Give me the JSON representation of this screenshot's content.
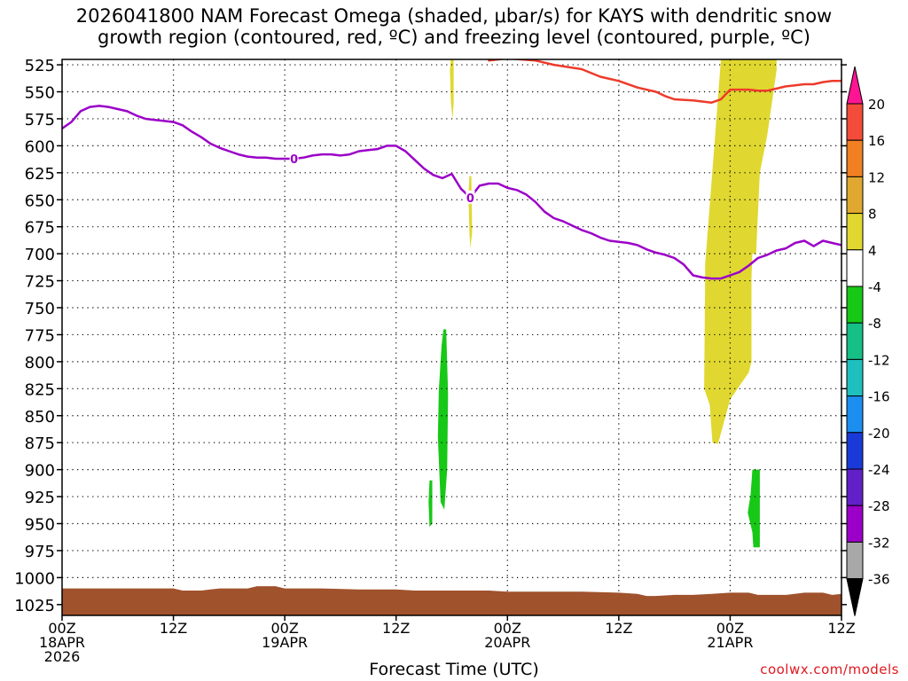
{
  "title_line1": "2026041800 NAM Forecast Omega (shaded, μbar/s) for KAYS with dendritic snow",
  "title_line2": "growth region (contoured, red, ºC) and freezing level (contoured, purple, ºC)",
  "xlabel": "Forecast Time (UTC)",
  "credit": "coolwx.com/models",
  "chart_data": {
    "type": "area",
    "y_axis": {
      "label": "",
      "unit": "hPa",
      "inverted": true,
      "range": [
        1035,
        520
      ],
      "ticks": [
        525,
        550,
        575,
        600,
        625,
        650,
        675,
        700,
        725,
        750,
        775,
        800,
        825,
        850,
        875,
        900,
        925,
        950,
        975,
        1000,
        1025
      ]
    },
    "x_axis": {
      "unit": "hours from 2026041800",
      "range": [
        0,
        84
      ],
      "ticks": [
        {
          "h": 0,
          "lines": [
            "00Z",
            "18APR",
            "2026"
          ]
        },
        {
          "h": 12,
          "lines": [
            "12Z"
          ]
        },
        {
          "h": 24,
          "lines": [
            "00Z",
            "19APR"
          ]
        },
        {
          "h": 36,
          "lines": [
            "12Z"
          ]
        },
        {
          "h": 48,
          "lines": [
            "00Z",
            "20APR"
          ]
        },
        {
          "h": 60,
          "lines": [
            "12Z"
          ]
        },
        {
          "h": 72,
          "lines": [
            "00Z",
            "21APR"
          ]
        },
        {
          "h": 84,
          "lines": [
            "12Z"
          ]
        }
      ]
    },
    "grid": true,
    "freezing_level": {
      "color": "#9b00c8",
      "label": "0",
      "label_points": [
        [
          25,
          612
        ],
        [
          44,
          648
        ]
      ],
      "points": [
        [
          0,
          584
        ],
        [
          1,
          578
        ],
        [
          2,
          568
        ],
        [
          3,
          564
        ],
        [
          4,
          563
        ],
        [
          5,
          564
        ],
        [
          6,
          566
        ],
        [
          7,
          568
        ],
        [
          8,
          572
        ],
        [
          9,
          575
        ],
        [
          10,
          576
        ],
        [
          11,
          577
        ],
        [
          12,
          578
        ],
        [
          13,
          581
        ],
        [
          14,
          587
        ],
        [
          15,
          592
        ],
        [
          16,
          598
        ],
        [
          17,
          602
        ],
        [
          18,
          605
        ],
        [
          19,
          608
        ],
        [
          20,
          610
        ],
        [
          21,
          611
        ],
        [
          22,
          611
        ],
        [
          23,
          612
        ],
        [
          24,
          612
        ],
        [
          25,
          612
        ],
        [
          26,
          611
        ],
        [
          27,
          609
        ],
        [
          28,
          608
        ],
        [
          29,
          608
        ],
        [
          30,
          609
        ],
        [
          31,
          608
        ],
        [
          32,
          605
        ],
        [
          33,
          604
        ],
        [
          34,
          603
        ],
        [
          35,
          600
        ],
        [
          36,
          600
        ],
        [
          37,
          605
        ],
        [
          38,
          613
        ],
        [
          39,
          621
        ],
        [
          40,
          627
        ],
        [
          41,
          630
        ],
        [
          42,
          626
        ],
        [
          43,
          640
        ],
        [
          44,
          648
        ],
        [
          45,
          637
        ],
        [
          46,
          635
        ],
        [
          47,
          635
        ],
        [
          48,
          639
        ],
        [
          49,
          641
        ],
        [
          50,
          645
        ],
        [
          51,
          652
        ],
        [
          52,
          661
        ],
        [
          53,
          667
        ],
        [
          54,
          670
        ],
        [
          55,
          674
        ],
        [
          56,
          678
        ],
        [
          57,
          681
        ],
        [
          58,
          685
        ],
        [
          59,
          688
        ],
        [
          60,
          689
        ],
        [
          61,
          690
        ],
        [
          62,
          692
        ],
        [
          63,
          696
        ],
        [
          64,
          699
        ],
        [
          65,
          701
        ],
        [
          66,
          704
        ],
        [
          67,
          710
        ],
        [
          68,
          720
        ],
        [
          69,
          722
        ],
        [
          70,
          723
        ],
        [
          71,
          723
        ],
        [
          72,
          720
        ],
        [
          73,
          717
        ],
        [
          74,
          711
        ],
        [
          75,
          704
        ],
        [
          76,
          701
        ],
        [
          77,
          697
        ],
        [
          78,
          695
        ],
        [
          79,
          690
        ],
        [
          80,
          688
        ],
        [
          81,
          693
        ],
        [
          82,
          688
        ],
        [
          83,
          690
        ],
        [
          84,
          692
        ]
      ]
    },
    "dgz_contour": {
      "color": "#ee3a2a",
      "points": [
        [
          46,
          521
        ],
        [
          48,
          519
        ],
        [
          51,
          521
        ],
        [
          53,
          525
        ],
        [
          56,
          529
        ],
        [
          58,
          536
        ],
        [
          60,
          540
        ],
        [
          62,
          546
        ],
        [
          64,
          550
        ],
        [
          65,
          554
        ],
        [
          66,
          557
        ],
        [
          68,
          558
        ],
        [
          69,
          559
        ],
        [
          70,
          560
        ],
        [
          71,
          557
        ],
        [
          72,
          548
        ],
        [
          73,
          548
        ],
        [
          74,
          548
        ],
        [
          75,
          549
        ],
        [
          76,
          549
        ],
        [
          77,
          547
        ],
        [
          78,
          545
        ],
        [
          79,
          544
        ],
        [
          80,
          543
        ],
        [
          81,
          543
        ],
        [
          82,
          541
        ],
        [
          83,
          540
        ],
        [
          84,
          540
        ]
      ]
    },
    "omega_shading": [
      {
        "color": "#e0d830",
        "range": "4 to 8",
        "polygon": [
          [
            41.9,
            520
          ],
          [
            42.2,
            520
          ],
          [
            42.2,
            560
          ],
          [
            42.1,
            575
          ],
          [
            41.9,
            560
          ],
          [
            41.8,
            530
          ]
        ]
      },
      {
        "color": "#e0d830",
        "range": "4 to 8",
        "polygon": [
          [
            43.9,
            628
          ],
          [
            44.1,
            628
          ],
          [
            44.2,
            680
          ],
          [
            44.0,
            695
          ],
          [
            43.9,
            680
          ],
          [
            43.8,
            645
          ]
        ]
      },
      {
        "color": "#e0d830",
        "range": "4 to 8",
        "polygon": [
          [
            71.0,
            520
          ],
          [
            77.0,
            520
          ],
          [
            77.0,
            530
          ],
          [
            76.0,
            590
          ],
          [
            75.2,
            625
          ],
          [
            74.8,
            700
          ],
          [
            74.4,
            700
          ],
          [
            74.3,
            722
          ],
          [
            74.3,
            800
          ],
          [
            74.0,
            810
          ],
          [
            72.0,
            835
          ],
          [
            70.7,
            876
          ],
          [
            70.1,
            875
          ],
          [
            69.8,
            840
          ],
          [
            69.2,
            825
          ],
          [
            69.3,
            725
          ],
          [
            69.3,
            710
          ],
          [
            70.3,
            600
          ],
          [
            71.0,
            520
          ]
        ]
      },
      {
        "color": "#17c817",
        "range": "-4 to -8",
        "polygon": [
          [
            41.1,
            770
          ],
          [
            41.4,
            770
          ],
          [
            41.6,
            830
          ],
          [
            41.5,
            900
          ],
          [
            41.2,
            937
          ],
          [
            40.8,
            930
          ],
          [
            40.5,
            870
          ],
          [
            40.6,
            826
          ],
          [
            40.9,
            785
          ]
        ]
      },
      {
        "color": "#17c817",
        "range": "-4 to -8",
        "polygon": [
          [
            39.6,
            910
          ],
          [
            39.9,
            910
          ],
          [
            39.9,
            950
          ],
          [
            39.6,
            953
          ],
          [
            39.5,
            930
          ]
        ]
      },
      {
        "color": "#17c817",
        "range": "-4 to -8",
        "polygon": [
          [
            74.4,
            900
          ],
          [
            75.2,
            900
          ],
          [
            75.2,
            972
          ],
          [
            74.5,
            972
          ],
          [
            74.4,
            958
          ],
          [
            73.9,
            940
          ],
          [
            74.2,
            923
          ]
        ]
      }
    ],
    "surface": {
      "color": "#a0522d",
      "points": [
        [
          0,
          1010
        ],
        [
          2,
          1010
        ],
        [
          12,
          1010
        ],
        [
          13,
          1012
        ],
        [
          15,
          1012
        ],
        [
          16,
          1011
        ],
        [
          17,
          1010
        ],
        [
          20,
          1010
        ],
        [
          21,
          1008
        ],
        [
          23,
          1008
        ],
        [
          24,
          1010
        ],
        [
          28,
          1010
        ],
        [
          32,
          1011
        ],
        [
          36,
          1011
        ],
        [
          38,
          1012
        ],
        [
          42,
          1012
        ],
        [
          46,
          1012
        ],
        [
          48,
          1013
        ],
        [
          56,
          1013
        ],
        [
          60,
          1014
        ],
        [
          62,
          1015
        ],
        [
          63,
          1017
        ],
        [
          64,
          1017
        ],
        [
          66,
          1016
        ],
        [
          68,
          1016
        ],
        [
          70,
          1015
        ],
        [
          72,
          1014
        ],
        [
          74,
          1014
        ],
        [
          75,
          1016
        ],
        [
          78,
          1016
        ],
        [
          80,
          1014
        ],
        [
          82,
          1014
        ],
        [
          83,
          1016
        ],
        [
          84,
          1015
        ]
      ]
    },
    "colorbar": {
      "labels": [
        "20",
        "16",
        "12",
        "8",
        "4",
        "-4",
        "-8",
        "-12",
        "-16",
        "-20",
        "-24",
        "-28",
        "-32",
        "-36"
      ],
      "colors": [
        "#ff1493",
        "#f44c3a",
        "#f08022",
        "#e0a830",
        "#e0d830",
        "#ffffff",
        "#17c817",
        "#16bf86",
        "#1fbfbf",
        "#1c8ef0",
        "#1a3ad8",
        "#6220c8",
        "#9c00c8",
        "#a8a8a8",
        "#000000"
      ]
    }
  }
}
